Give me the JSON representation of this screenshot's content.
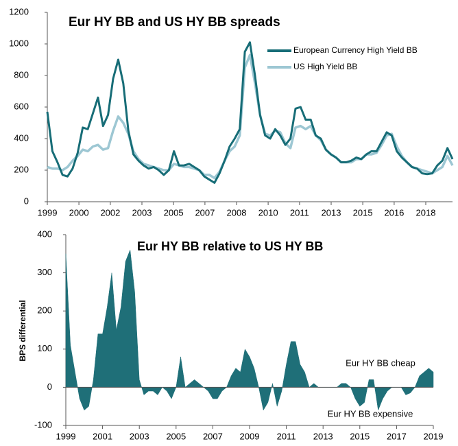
{
  "chart_data": [
    {
      "type": "line",
      "title": "Eur HY BB and US HY BB spreads",
      "x": [
        1999,
        1999.25,
        1999.5,
        1999.75,
        2000,
        2000.25,
        2000.5,
        2000.75,
        2001,
        2001.25,
        2001.5,
        2001.75,
        2002,
        2002.25,
        2002.5,
        2002.75,
        2003,
        2003.25,
        2003.5,
        2003.75,
        2004,
        2004.25,
        2004.5,
        2004.75,
        2005,
        2005.25,
        2005.5,
        2005.75,
        2006,
        2006.25,
        2006.5,
        2006.75,
        2007,
        2007.25,
        2007.5,
        2007.75,
        2008,
        2008.25,
        2008.5,
        2008.75,
        2009,
        2009.25,
        2009.5,
        2009.75,
        2010,
        2010.25,
        2010.5,
        2010.75,
        2011,
        2011.25,
        2011.5,
        2011.75,
        2012,
        2012.25,
        2012.5,
        2012.75,
        2013,
        2013.25,
        2013.5,
        2013.75,
        2014,
        2014.25,
        2014.5,
        2014.75,
        2015,
        2015.25,
        2015.5,
        2015.75,
        2016,
        2016.25,
        2016.5,
        2016.75,
        2017,
        2017.25,
        2017.5,
        2017.75,
        2018,
        2018.25,
        2018.5,
        2018.75,
        2019
      ],
      "series": [
        {
          "name": "European Currency High Yield BB",
          "color": "#176d77",
          "values": [
            570,
            320,
            250,
            170,
            160,
            210,
            310,
            470,
            460,
            560,
            660,
            480,
            550,
            780,
            900,
            750,
            450,
            300,
            260,
            230,
            210,
            220,
            200,
            170,
            200,
            320,
            230,
            230,
            240,
            220,
            200,
            160,
            140,
            120,
            180,
            260,
            350,
            400,
            460,
            950,
            1010,
            800,
            550,
            420,
            400,
            460,
            420,
            360,
            400,
            590,
            600,
            520,
            520,
            420,
            400,
            330,
            300,
            280,
            250,
            250,
            260,
            280,
            270,
            300,
            320,
            320,
            380,
            440,
            420,
            320,
            280,
            250,
            220,
            210,
            180,
            175,
            180,
            230,
            260,
            340,
            270
          ]
        },
        {
          "name": "US High Yield BB",
          "color": "#9dc7d3",
          "values": [
            220,
            210,
            210,
            200,
            220,
            260,
            290,
            330,
            320,
            350,
            360,
            330,
            340,
            450,
            540,
            500,
            430,
            320,
            270,
            240,
            230,
            220,
            210,
            200,
            200,
            240,
            230,
            220,
            220,
            210,
            200,
            170,
            170,
            150,
            190,
            260,
            320,
            350,
            420,
            850,
            930,
            750,
            550,
            430,
            420,
            450,
            440,
            370,
            340,
            470,
            480,
            460,
            480,
            420,
            390,
            330,
            300,
            280,
            250,
            250,
            250,
            270,
            270,
            300,
            300,
            310,
            360,
            420,
            430,
            350,
            290,
            250,
            220,
            210,
            200,
            190,
            180,
            200,
            220,
            290,
            230
          ]
        }
      ],
      "xlim": [
        1999,
        2019
      ],
      "xticks": [
        {
          "value": 1999,
          "label": "1999"
        },
        {
          "value": 2000.56,
          "label": "2000"
        },
        {
          "value": 2002.11,
          "label": "2002"
        },
        {
          "value": 2003.67,
          "label": "2003"
        },
        {
          "value": 2005.23,
          "label": "2005"
        },
        {
          "value": 2006.78,
          "label": "2007"
        },
        {
          "value": 2008.34,
          "label": "2008"
        },
        {
          "value": 2009.9,
          "label": "2010"
        },
        {
          "value": 2011.45,
          "label": "2011"
        },
        {
          "value": 2013.01,
          "label": "2013"
        },
        {
          "value": 2014.57,
          "label": "2015"
        },
        {
          "value": 2016.12,
          "label": "2016"
        },
        {
          "value": 2017.68,
          "label": "2018"
        }
      ],
      "ylim": [
        0,
        1200
      ],
      "yticks": [
        0,
        200,
        400,
        600,
        800,
        1000,
        1200
      ]
    },
    {
      "type": "area",
      "title": "Eur HY BB relative to US HY BB",
      "y_label": "BPS differential",
      "annotations": [
        "Eur HY BB cheap",
        "Eur HY BB expensive"
      ],
      "x": [
        1999,
        1999.25,
        1999.5,
        1999.75,
        2000,
        2000.25,
        2000.5,
        2000.75,
        2001,
        2001.25,
        2001.5,
        2001.75,
        2002,
        2002.25,
        2002.5,
        2002.75,
        2003,
        2003.25,
        2003.5,
        2003.75,
        2004,
        2004.25,
        2004.5,
        2004.75,
        2005,
        2005.25,
        2005.5,
        2005.75,
        2006,
        2006.25,
        2006.5,
        2006.75,
        2007,
        2007.25,
        2007.5,
        2007.75,
        2008,
        2008.25,
        2008.5,
        2008.75,
        2009,
        2009.25,
        2009.5,
        2009.75,
        2010,
        2010.25,
        2010.5,
        2010.75,
        2011,
        2011.25,
        2011.5,
        2011.75,
        2012,
        2012.25,
        2012.5,
        2012.75,
        2013,
        2013.25,
        2013.5,
        2013.75,
        2014,
        2014.25,
        2014.5,
        2014.75,
        2015,
        2015.25,
        2015.5,
        2015.75,
        2016,
        2016.25,
        2016.5,
        2016.75,
        2017,
        2017.25,
        2017.5,
        2017.75,
        2018,
        2018.25,
        2018.5,
        2018.75,
        2019
      ],
      "values": [
        350,
        110,
        40,
        -30,
        -60,
        -50,
        20,
        140,
        140,
        210,
        300,
        150,
        210,
        330,
        360,
        250,
        20,
        -20,
        -10,
        -10,
        -20,
        0,
        -10,
        -30,
        0,
        80,
        0,
        10,
        20,
        10,
        0,
        -10,
        -30,
        -30,
        -10,
        0,
        30,
        50,
        40,
        100,
        80,
        50,
        0,
        -60,
        -40,
        10,
        -50,
        -10,
        60,
        120,
        120,
        60,
        40,
        0,
        10,
        0,
        0,
        0,
        0,
        0,
        10,
        10,
        0,
        -30,
        -50,
        -40,
        20,
        20,
        -60,
        -30,
        -10,
        0,
        0,
        0,
        -20,
        -15,
        0,
        30,
        40,
        50,
        40
      ],
      "color": "#1f6f78",
      "xlim": [
        1999,
        2019
      ],
      "xticks": [
        1999,
        2001,
        2003,
        2005,
        2007,
        2009,
        2011,
        2013,
        2015,
        2017,
        2019
      ],
      "ylim": [
        -100,
        400
      ],
      "yticks": [
        -100,
        0,
        100,
        200,
        300,
        400
      ]
    }
  ]
}
